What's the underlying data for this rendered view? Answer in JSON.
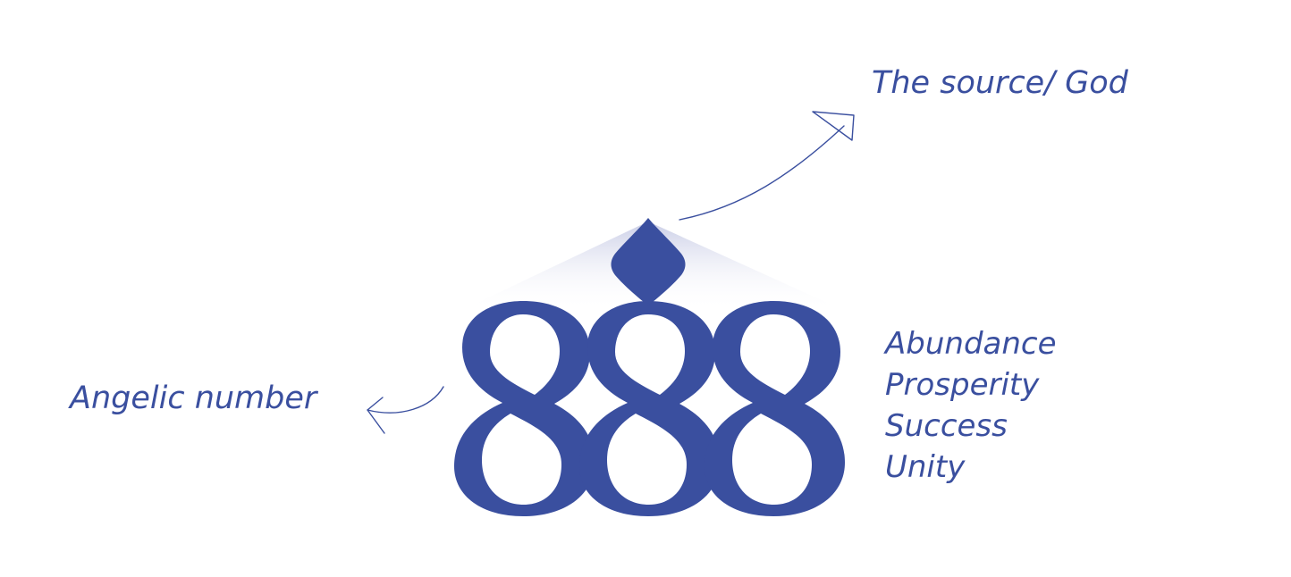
{
  "colors": {
    "primary": "#3a4f9f",
    "background": "#ffffff",
    "glow": "#c7cbe5"
  },
  "figure": {
    "numeral": "888",
    "top_symbol": "diamond"
  },
  "annotations": {
    "source": "The source/ God",
    "angelic": "Angelic number"
  },
  "meanings": [
    "Abundance",
    "Prosperity",
    "Success",
    "Unity"
  ]
}
